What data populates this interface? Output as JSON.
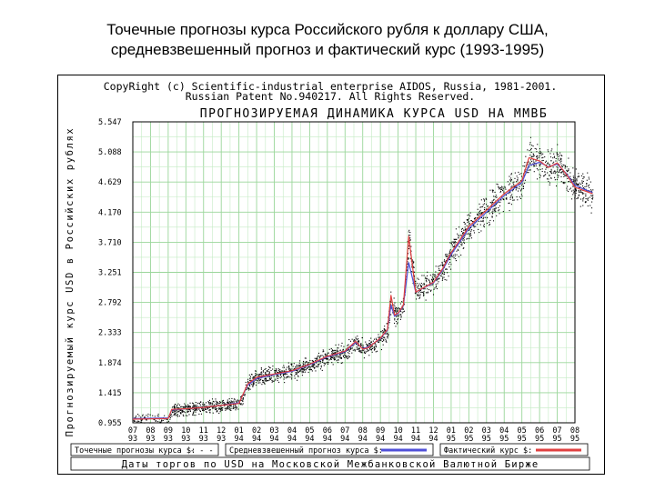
{
  "slide": {
    "title_line1": "Точечные прогнозы курса Российского рубля к доллару США,",
    "title_line2": "средневзвешенный прогноз и фактический курс (1993-1995)"
  },
  "chart_data": {
    "type": "line",
    "copyright_line1": "CopyRight (c) Scientific-industrial enterprise AIDOS, Russia, 1981-2001.",
    "copyright_line2": "Russian Patent No.940217. All Rights Reserved.",
    "title": "ПРОГНОЗИРУЕМАЯ ДИНАМИКА КУРСА USD НА ММВБ",
    "ylabel": "Прогнозируемый курс USD в Российских рублях",
    "xlabel": "Даты торгов по USD на Московской Межбанковской Валютной Бирже",
    "ylim": [
      0.955,
      5.547
    ],
    "y_ticks": [
      "5.547",
      "5.088",
      "4.629",
      "4.170",
      "3.710",
      "3.251",
      "2.792",
      "2.333",
      "1.874",
      "1.415",
      "0.955"
    ],
    "x_ticks": [
      {
        "month": "07",
        "year": "93"
      },
      {
        "month": "08",
        "year": "93"
      },
      {
        "month": "09",
        "year": "93"
      },
      {
        "month": "10",
        "year": "93"
      },
      {
        "month": "11",
        "year": "93"
      },
      {
        "month": "12",
        "year": "93"
      },
      {
        "month": "01",
        "year": "94"
      },
      {
        "month": "02",
        "year": "94"
      },
      {
        "month": "03",
        "year": "94"
      },
      {
        "month": "04",
        "year": "94"
      },
      {
        "month": "05",
        "year": "94"
      },
      {
        "month": "06",
        "year": "94"
      },
      {
        "month": "07",
        "year": "94"
      },
      {
        "month": "08",
        "year": "94"
      },
      {
        "month": "09",
        "year": "94"
      },
      {
        "month": "10",
        "year": "94"
      },
      {
        "month": "11",
        "year": "94"
      },
      {
        "month": "12",
        "year": "94"
      },
      {
        "month": "01",
        "year": "95"
      },
      {
        "month": "02",
        "year": "95"
      },
      {
        "month": "03",
        "year": "95"
      },
      {
        "month": "04",
        "year": "95"
      },
      {
        "month": "05",
        "year": "95"
      },
      {
        "month": "06",
        "year": "95"
      },
      {
        "month": "07",
        "year": "95"
      },
      {
        "month": "08",
        "year": "95"
      }
    ],
    "legend": [
      {
        "label": "Точечные прогнозы курса $:",
        "marker": "- - -"
      },
      {
        "label": "Средневзвешенный прогноз курса $:",
        "marker": "",
        "color": "#5050d8"
      },
      {
        "label": "Фактический курс $:",
        "marker": "",
        "color": "#e04040"
      }
    ],
    "series": [
      {
        "name": "Фактический курс",
        "color": "#e04040",
        "x": [
          0,
          2.0,
          2.2,
          3.0,
          4.0,
          5.0,
          6.0,
          6.5,
          7.0,
          8.0,
          9.0,
          10.0,
          11.0,
          12.0,
          12.6,
          13.0,
          13.3,
          14.0,
          14.4,
          14.6,
          14.8,
          15.0,
          15.3,
          15.6,
          16.0,
          17.0,
          17.5,
          18.0,
          19.0,
          20.0,
          21.0,
          22.0,
          22.4,
          23.0,
          23.5,
          24.0,
          24.5,
          25.0,
          25.5,
          26.0
        ],
        "values": [
          1.01,
          1.02,
          1.16,
          1.17,
          1.19,
          1.22,
          1.25,
          1.55,
          1.65,
          1.7,
          1.75,
          1.85,
          1.97,
          2.05,
          2.2,
          2.08,
          2.1,
          2.25,
          2.38,
          2.9,
          2.6,
          2.63,
          2.75,
          3.8,
          2.95,
          3.1,
          3.3,
          3.55,
          3.95,
          4.2,
          4.45,
          4.65,
          5.0,
          4.95,
          4.85,
          4.92,
          4.75,
          4.55,
          4.5,
          4.45
        ]
      },
      {
        "name": "Средневзвешенный прогноз",
        "color": "#5050d8",
        "x": [
          0,
          2.0,
          2.2,
          3.0,
          4.0,
          5.0,
          6.0,
          6.5,
          7.0,
          8.0,
          9.0,
          10.0,
          11.0,
          12.0,
          12.6,
          13.0,
          13.3,
          14.0,
          14.4,
          14.6,
          14.8,
          15.0,
          15.3,
          15.6,
          16.0,
          17.0,
          17.5,
          18.0,
          19.0,
          20.0,
          21.0,
          22.0,
          22.4,
          23.0,
          23.5,
          24.0,
          24.5,
          25.0,
          25.5,
          26.0
        ],
        "values": [
          1.02,
          1.03,
          1.15,
          1.17,
          1.19,
          1.22,
          1.26,
          1.53,
          1.63,
          1.69,
          1.74,
          1.84,
          1.96,
          2.04,
          2.18,
          2.09,
          2.11,
          2.24,
          2.37,
          2.75,
          2.58,
          2.62,
          2.74,
          3.4,
          2.95,
          3.09,
          3.28,
          3.52,
          3.92,
          4.17,
          4.42,
          4.62,
          4.88,
          4.93,
          4.86,
          4.9,
          4.76,
          4.58,
          4.52,
          4.47
        ]
      }
    ]
  }
}
